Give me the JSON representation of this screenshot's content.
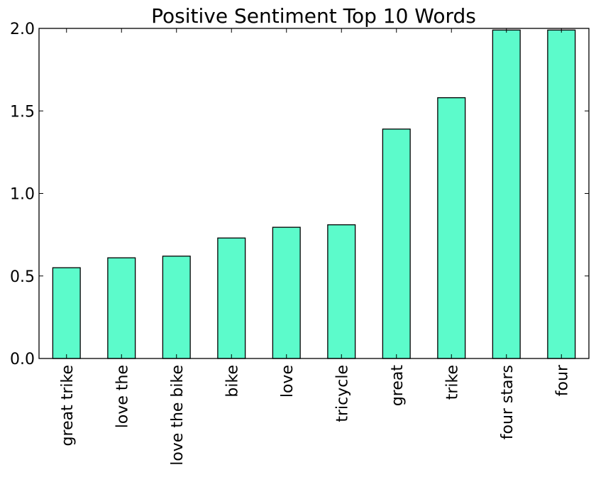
{
  "chart_data": {
    "type": "bar",
    "title": "Positive Sentiment Top 10 Words",
    "xlabel": "",
    "ylabel": "",
    "categories": [
      "great trike",
      "love the",
      "love the bike",
      "bike",
      "love",
      "tricycle",
      "great",
      "trike",
      "four stars",
      "four"
    ],
    "values": [
      0.55,
      0.61,
      0.62,
      0.73,
      0.795,
      0.81,
      1.39,
      1.58,
      1.99,
      1.99
    ],
    "ylim": [
      0,
      2.0
    ],
    "yticks": [
      "0.0",
      "0.5",
      "1.0",
      "1.5",
      "2.0"
    ],
    "grid": false,
    "legend": "none",
    "bar_color": "#5cfbcb",
    "edge_color": "#000000"
  }
}
